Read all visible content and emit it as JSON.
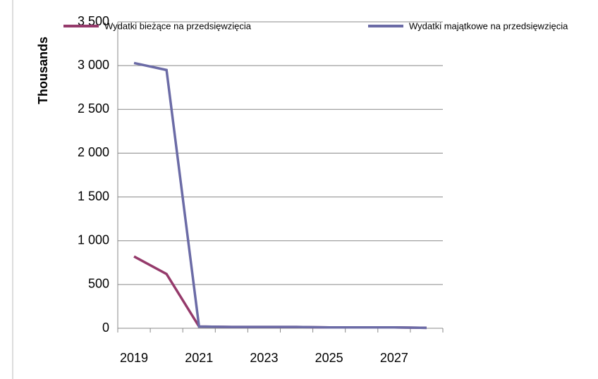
{
  "chart_data": {
    "type": "line",
    "y_label": "Thousands",
    "categories": [
      "2019",
      null,
      "2021",
      null,
      "2023",
      null,
      "2025",
      null,
      "2027",
      null
    ],
    "series": [
      {
        "name": "Wydatki bieżące na przedsięwzięcia",
        "color": "#953a6b",
        "values": [
          820,
          620,
          20,
          15,
          15,
          15,
          10,
          10,
          10,
          5
        ]
      },
      {
        "name": "Wydatki majątkowe na przedsięwzięcia",
        "color": "#6b6ba6",
        "values": [
          3030,
          2950,
          20,
          15,
          15,
          15,
          10,
          10,
          10,
          5
        ]
      }
    ],
    "ylim": [
      0,
      3500
    ],
    "yticks": [
      0,
      500,
      {
        "value": 1000,
        "label": "1 000"
      },
      {
        "value": 1500,
        "label": "1 500"
      },
      {
        "value": 2000,
        "label": "2 000"
      },
      {
        "value": 2500,
        "label": "2 500"
      },
      {
        "value": 3000,
        "label": "3 000"
      },
      {
        "value": 3500,
        "label": "3 500"
      }
    ],
    "grid": true
  }
}
